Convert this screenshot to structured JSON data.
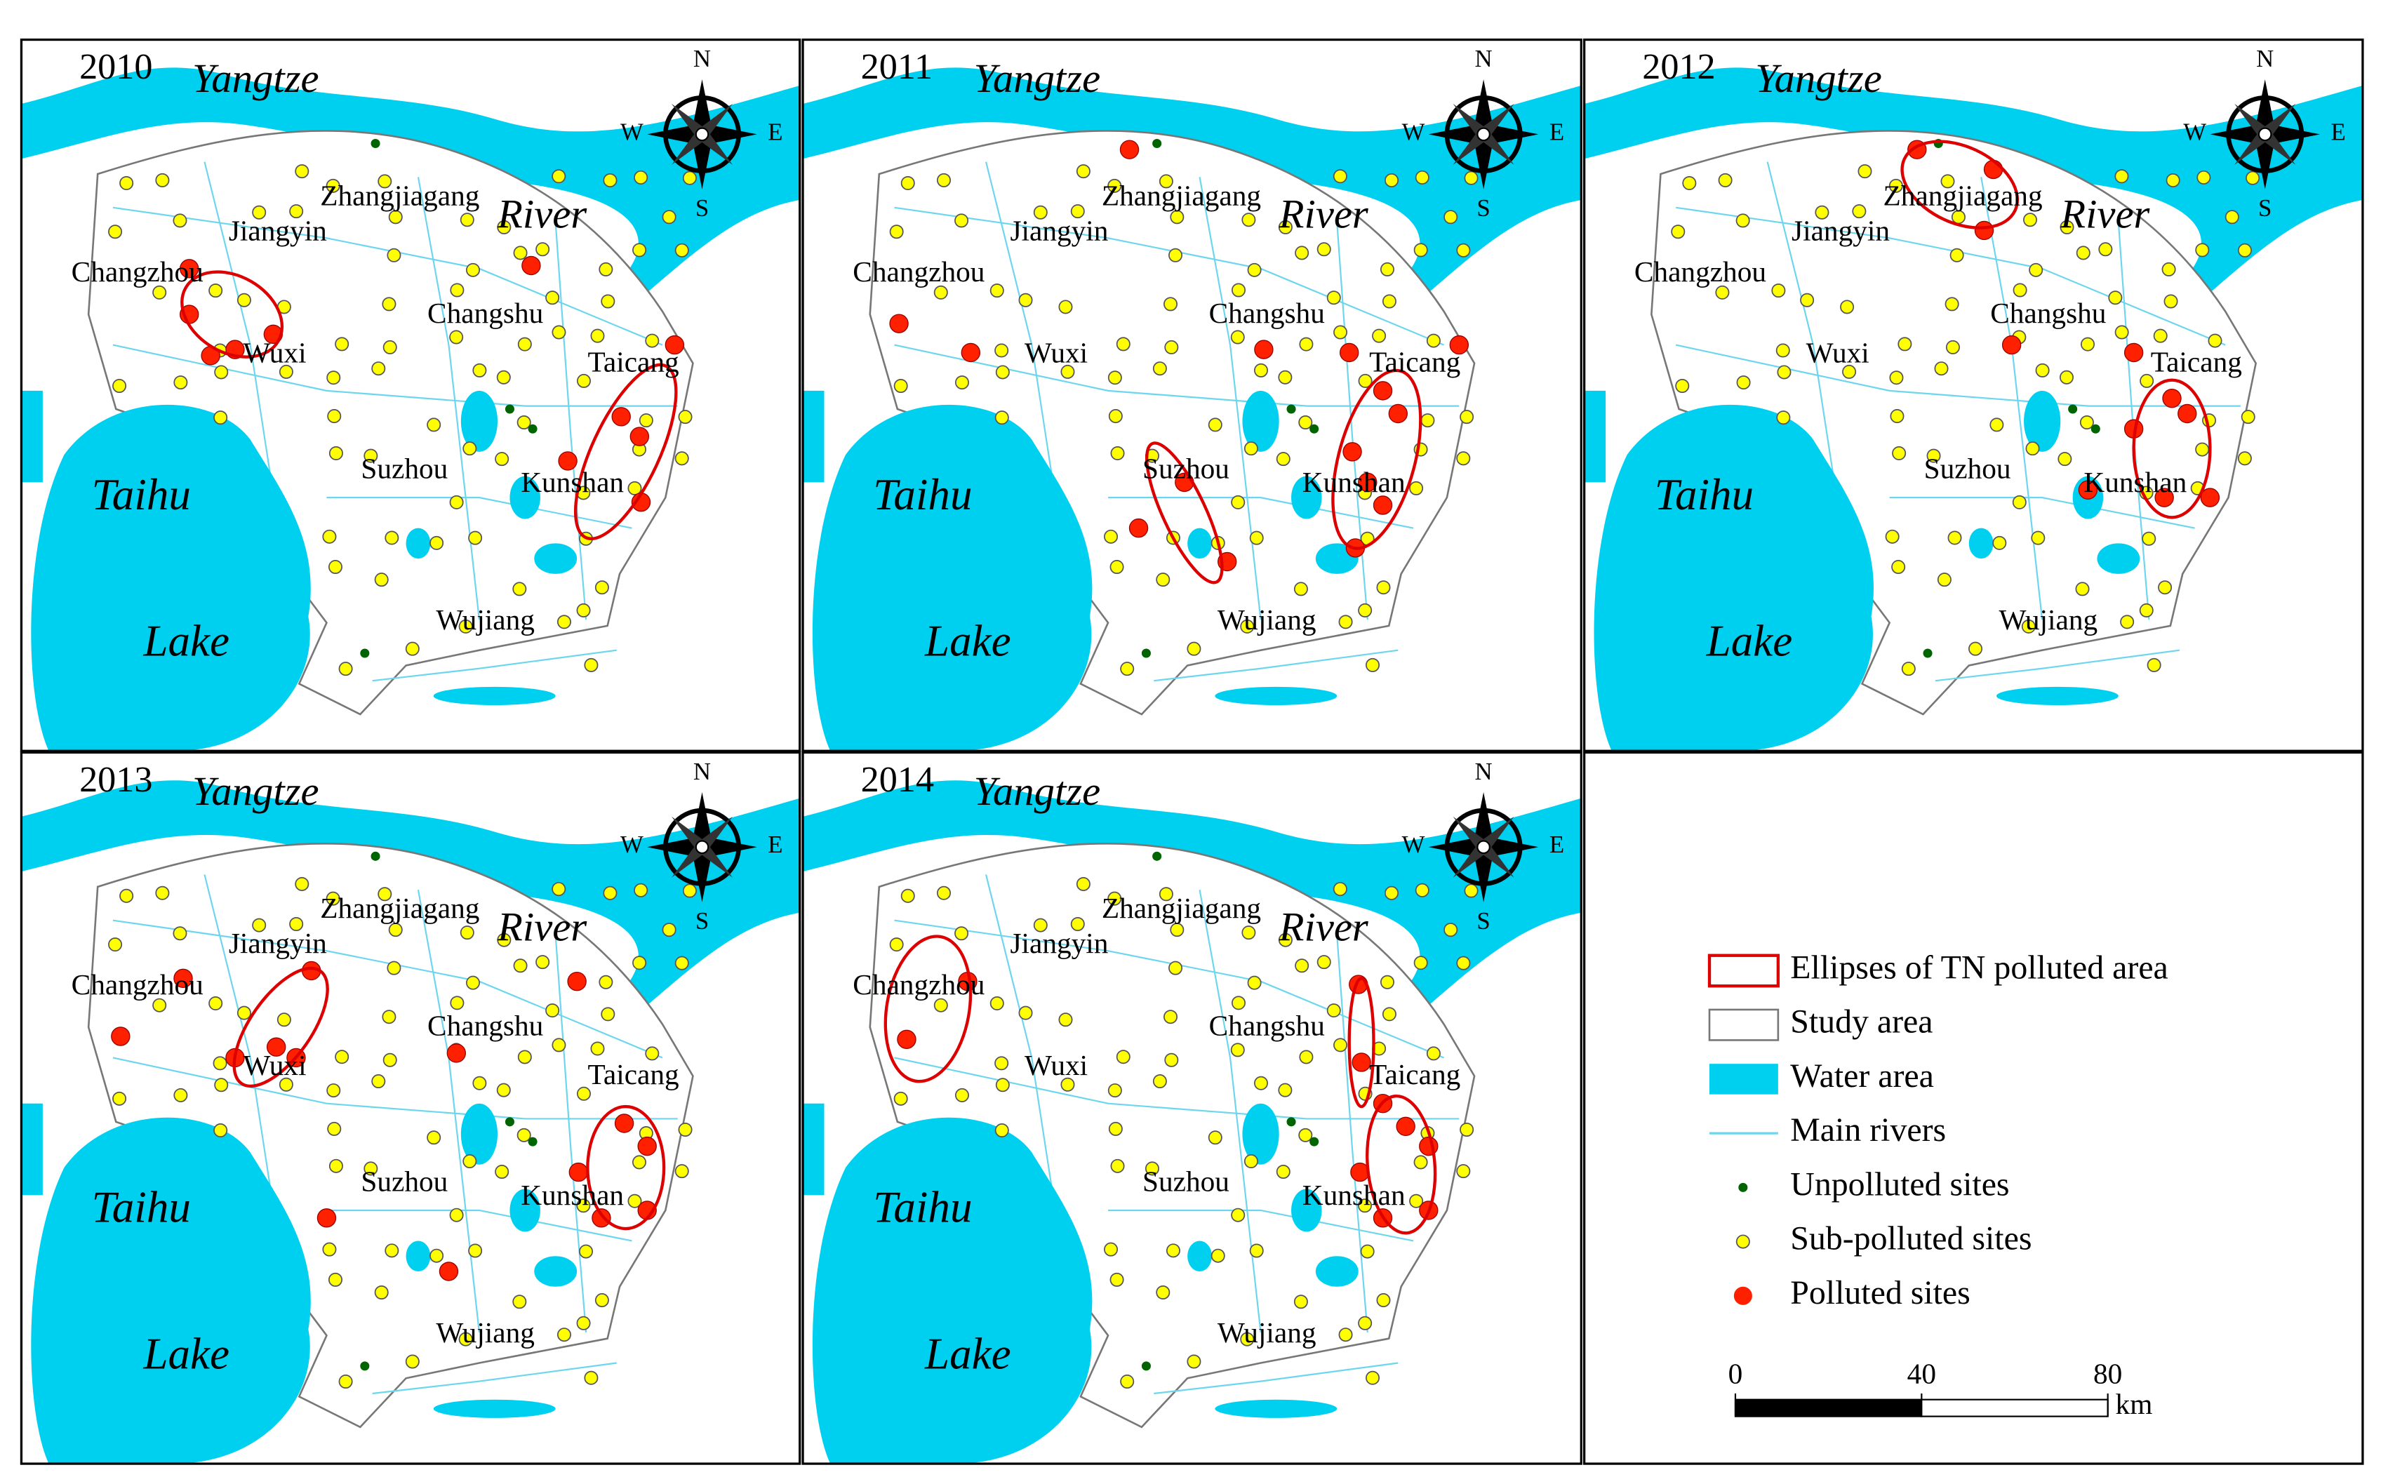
{
  "panels": [
    {
      "year": "2010"
    },
    {
      "year": "2011"
    },
    {
      "year": "2012"
    },
    {
      "year": "2013"
    },
    {
      "year": "2014"
    }
  ],
  "map_labels": {
    "yangtze": "Yangtze",
    "river": "River",
    "taihu": "Taihu",
    "lake": "Lake",
    "places": [
      "Zhangjiagang",
      "Jiangyin",
      "Changzhou",
      "Changshu",
      "Wuxi",
      "Taicang",
      "Suzhou",
      "Kunshan",
      "Wujiang"
    ]
  },
  "compass": {
    "north": "N",
    "south": "S",
    "west": "W",
    "east": "E"
  },
  "legend": [
    "Ellipses of TN polluted area",
    "Study area",
    "Water area",
    "Main rivers",
    "Unpolluted sites",
    "Sub-polluted sites",
    "Polluted sites"
  ],
  "scale_bar": {
    "xlim": [
      0,
      80
    ],
    "ticks": [
      0,
      40,
      80
    ],
    "unit": "km"
  }
}
